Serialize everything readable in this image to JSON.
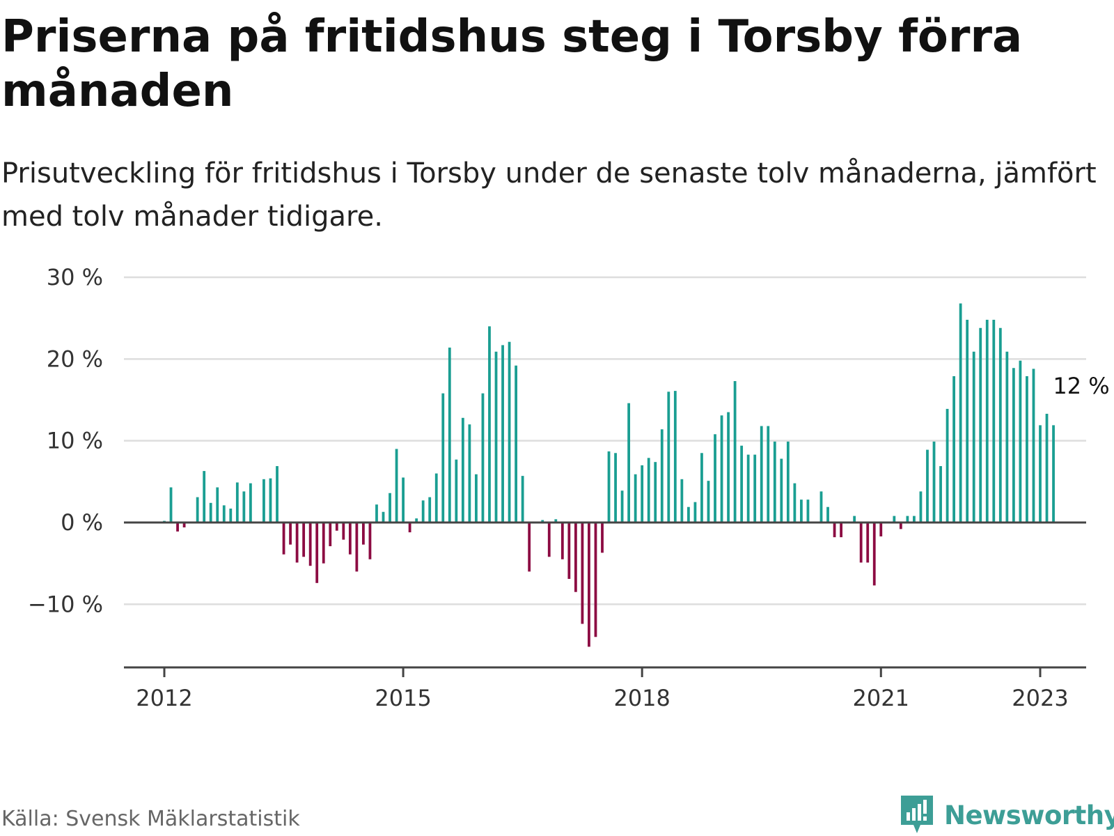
{
  "title": "Priserna på fritidshus steg i Torsby förra månaden",
  "subtitle": "Prisutveckling för fritidshus i Torsby under de senaste tolv månaderna, jämfört med tolv månader tidigare.",
  "source": "Källa: Svensk Mäklarstatistik",
  "brand": {
    "name": "Newsworthy",
    "icon": "newsworthy-logo-icon",
    "color": "#3d9e96"
  },
  "chart_data": {
    "type": "bar",
    "y_unit": "%",
    "ylim": [
      -18,
      30
    ],
    "y_ticks": [
      30,
      20,
      10,
      0,
      -10
    ],
    "y_tick_labels": [
      "30 %",
      "20 %",
      "10 %",
      "0 %",
      "−10 %"
    ],
    "x_tick_labels": [
      "2012",
      "2015",
      "2018",
      "2021",
      "2023"
    ],
    "x_start": "2012-01",
    "x_end": "2023-01",
    "grid": true,
    "colors": {
      "positive": "#1a9e92",
      "negative": "#8c0b42",
      "grid": "#dddddd",
      "axis": "#444444"
    },
    "last_value_label": "12 %",
    "series": [
      {
        "values": [
          0.2,
          4.3,
          -1.1,
          -0.6,
          0,
          3.1,
          6.3,
          2.4,
          4.3,
          2.1,
          1.7,
          4.9,
          3.8,
          4.8,
          0,
          5.3,
          5.4,
          6.9,
          -3.9,
          -2.7,
          -4.9,
          -4.2,
          -5.3,
          -7.4,
          -5.0,
          -2.9,
          -1.0,
          -2.1,
          -3.9,
          -6.0,
          -2.7,
          -4.5,
          2.2,
          1.3,
          3.6,
          9.0,
          5.5,
          -1.2,
          0.5,
          2.7,
          3.1,
          6.0,
          15.8,
          21.4,
          7.7,
          12.8,
          12.0,
          5.9,
          15.8,
          24.0,
          20.9,
          21.7,
          22.1,
          19.2,
          5.7,
          -6.0,
          0,
          0.3,
          -4.2,
          0.4,
          -4.5,
          -6.9,
          -8.5,
          -12.4,
          -15.2,
          -14.0,
          -3.7,
          8.7,
          8.5,
          3.9,
          14.6,
          5.9,
          7.0,
          7.9,
          7.4,
          11.4,
          16.0,
          16.1,
          5.3,
          1.9,
          2.5,
          8.5,
          5.1,
          10.8,
          13.1,
          13.5,
          17.3,
          9.4,
          8.3,
          8.3,
          11.8,
          11.8,
          9.9,
          7.8,
          9.9,
          4.8,
          2.8,
          2.8,
          0,
          3.8,
          1.9,
          -1.8,
          -1.8,
          0,
          0.8,
          -4.9,
          -4.9,
          -7.7,
          -1.7,
          0,
          0.8,
          -0.8,
          0.8,
          0.8,
          3.8,
          8.9,
          9.9,
          6.9,
          13.9,
          17.9,
          26.8,
          24.8,
          20.9,
          23.8,
          24.8,
          24.8,
          23.8,
          20.9,
          18.9,
          19.8,
          17.9,
          18.8,
          11.9,
          13.3,
          11.9
        ]
      }
    ]
  }
}
